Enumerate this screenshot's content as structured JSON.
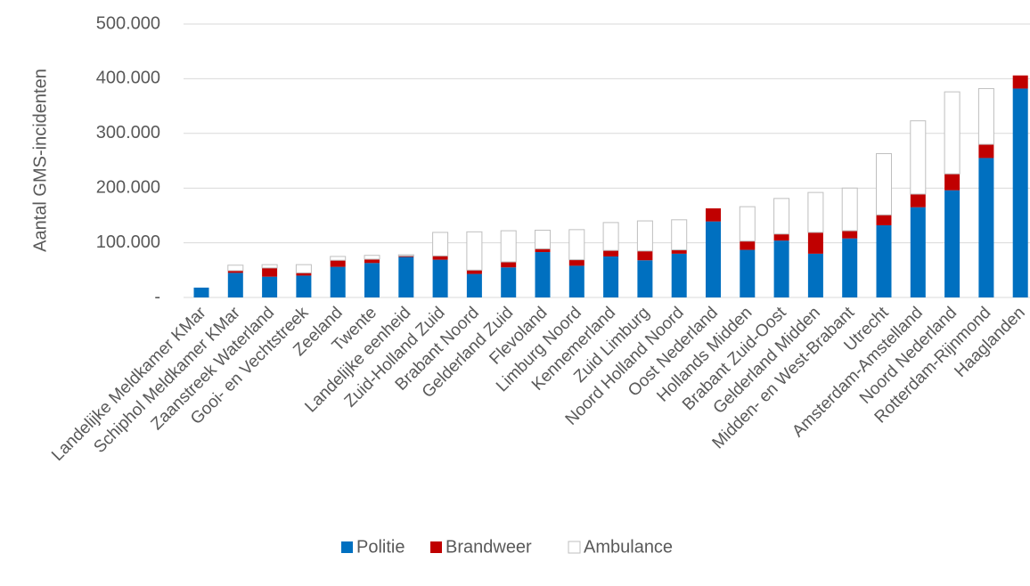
{
  "chart_data": {
    "type": "bar",
    "stacked": true,
    "title": "",
    "xlabel": "",
    "ylabel": "Aantal GMS-incidenten",
    "ylim": [
      0,
      500000
    ],
    "yticks": [
      0,
      100000,
      200000,
      300000,
      400000,
      500000
    ],
    "ytick_labels": [
      "-",
      "100.000",
      "200.000",
      "300.000",
      "400.000",
      "500.000"
    ],
    "grid": true,
    "legend_position": "bottom",
    "categories": [
      "Landelijke Meldkamer KMar",
      "Schiphol Meldkamer KMar",
      "Zaanstreek Waterland",
      "Gooi- en Vechtstreek",
      "Zeeland",
      "Twente",
      "Landelijke eenheid",
      "Zuid-Holland Zuid",
      "Brabant Noord",
      "Gelderland Zuid",
      "Flevoland",
      "Limburg Noord",
      "Kennemerland",
      "Zuid Limburg",
      "Noord Holland Noord",
      "Oost Nederland",
      "Hollands Midden",
      "Brabant Zuid-Oost",
      "Gelderland Midden",
      "Midden- en West-Brabant",
      "Utrecht",
      "Amsterdam-Amstelland",
      "Noord Nederland",
      "Rotterdam-Rijnmond",
      "Haaglanden"
    ],
    "series": [
      {
        "name": "Politie",
        "color": "#0070C0",
        "values": [
          18000,
          45000,
          38000,
          40000,
          56000,
          63000,
          74000,
          69000,
          43000,
          55000,
          83000,
          58000,
          75000,
          68000,
          80000,
          139000,
          87000,
          104000,
          80000,
          108000,
          132000,
          165000,
          196000,
          255000,
          382000
        ]
      },
      {
        "name": "Brandweer",
        "color": "#C00000",
        "values": [
          0,
          4000,
          16000,
          5000,
          12000,
          7000,
          2000,
          7000,
          7000,
          10000,
          6000,
          11000,
          11000,
          17000,
          7000,
          24000,
          16000,
          12000,
          39000,
          14000,
          19000,
          24000,
          30000,
          25000,
          24000
        ]
      },
      {
        "name": "Ambulance",
        "color": "#FFFFFF",
        "values": [
          0,
          10000,
          6000,
          15000,
          7000,
          7000,
          2000,
          43000,
          70000,
          57000,
          34000,
          55000,
          51000,
          55000,
          55000,
          0,
          63000,
          65000,
          73000,
          78000,
          112000,
          134000,
          150000,
          102000,
          0
        ]
      }
    ]
  }
}
